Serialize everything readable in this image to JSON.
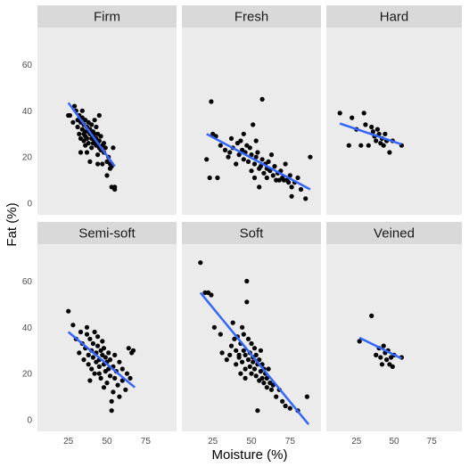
{
  "chart_data": {
    "type": "scatter",
    "xlabel": "Moisture (%)",
    "ylabel": "Fat (%)",
    "xlim": [
      5,
      95
    ],
    "ylim": [
      -5,
      76
    ],
    "x_ticks": [
      25,
      50,
      75
    ],
    "x_tick_labels": [
      "25",
      "50",
      "75"
    ],
    "y_ticks": [
      0,
      20,
      40,
      60
    ],
    "y_tick_labels": [
      "0",
      "20",
      "40",
      "60"
    ],
    "grid": false,
    "colors": {
      "panel": "#ebebeb",
      "strip": "#d9d9d9",
      "point": "#000000",
      "fit_line": "#3366ff"
    },
    "facets": [
      {
        "label": "Firm",
        "fit": {
          "x": [
            25,
            55
          ],
          "y": [
            43.5,
            16
          ]
        },
        "points": [
          [
            25,
            38
          ],
          [
            26,
            38
          ],
          [
            28,
            35
          ],
          [
            29,
            42
          ],
          [
            30,
            40
          ],
          [
            31,
            36
          ],
          [
            31,
            33
          ],
          [
            32,
            30
          ],
          [
            32,
            38
          ],
          [
            33,
            28
          ],
          [
            33,
            35
          ],
          [
            34,
            32
          ],
          [
            34,
            37
          ],
          [
            35,
            30
          ],
          [
            35,
            27
          ],
          [
            35,
            34
          ],
          [
            36,
            31
          ],
          [
            36,
            29
          ],
          [
            36,
            36
          ],
          [
            37,
            33
          ],
          [
            37,
            28
          ],
          [
            37,
            22
          ],
          [
            38,
            31
          ],
          [
            38,
            26
          ],
          [
            38,
            35
          ],
          [
            39,
            30
          ],
          [
            39,
            32
          ],
          [
            40,
            28
          ],
          [
            40,
            24
          ],
          [
            40,
            34
          ],
          [
            41,
            29
          ],
          [
            41,
            31
          ],
          [
            41,
            26
          ],
          [
            42,
            27
          ],
          [
            42,
            30
          ],
          [
            42,
            36
          ],
          [
            43,
            25
          ],
          [
            43,
            28
          ],
          [
            43,
            33
          ],
          [
            44,
            26
          ],
          [
            44,
            30
          ],
          [
            44,
            21
          ],
          [
            45,
            27
          ],
          [
            45,
            24
          ],
          [
            45,
            38
          ],
          [
            46,
            23
          ],
          [
            46,
            29
          ],
          [
            47,
            25
          ],
          [
            47,
            17
          ],
          [
            48,
            22
          ],
          [
            48,
            26
          ],
          [
            49,
            24
          ],
          [
            50,
            18
          ],
          [
            50,
            12
          ],
          [
            51,
            20
          ],
          [
            52,
            17
          ],
          [
            52,
            15
          ],
          [
            53,
            16
          ],
          [
            53,
            7
          ],
          [
            54,
            24
          ],
          [
            55,
            7
          ],
          [
            55,
            6
          ],
          [
            34,
            40
          ],
          [
            36,
            25
          ],
          [
            39,
            18
          ],
          [
            44,
            17
          ],
          [
            33,
            22
          ]
        ]
      },
      {
        "label": "Fresh",
        "fit": {
          "x": [
            21,
            88
          ],
          "y": [
            30,
            6
          ]
        },
        "points": [
          [
            21,
            19
          ],
          [
            23,
            11
          ],
          [
            24,
            44
          ],
          [
            25,
            30
          ],
          [
            27,
            29
          ],
          [
            28,
            11
          ],
          [
            30,
            25
          ],
          [
            33,
            23
          ],
          [
            35,
            20
          ],
          [
            36,
            22
          ],
          [
            37,
            28
          ],
          [
            38,
            24
          ],
          [
            40,
            17
          ],
          [
            41,
            26
          ],
          [
            42,
            21
          ],
          [
            43,
            27
          ],
          [
            44,
            23
          ],
          [
            45,
            30
          ],
          [
            45,
            19
          ],
          [
            46,
            22
          ],
          [
            47,
            25
          ],
          [
            48,
            18
          ],
          [
            49,
            24
          ],
          [
            50,
            21
          ],
          [
            50,
            14
          ],
          [
            51,
            34
          ],
          [
            52,
            17
          ],
          [
            53,
            20
          ],
          [
            53,
            27
          ],
          [
            54,
            22
          ],
          [
            55,
            15
          ],
          [
            56,
            16
          ],
          [
            57,
            19
          ],
          [
            57,
            45
          ],
          [
            58,
            13
          ],
          [
            59,
            17
          ],
          [
            60,
            11
          ],
          [
            60,
            15
          ],
          [
            61,
            18
          ],
          [
            62,
            14
          ],
          [
            63,
            21
          ],
          [
            64,
            12
          ],
          [
            65,
            16
          ],
          [
            66,
            10
          ],
          [
            67,
            13
          ],
          [
            68,
            10
          ],
          [
            69,
            14
          ],
          [
            70,
            11
          ],
          [
            71,
            10
          ],
          [
            72,
            17
          ],
          [
            73,
            10
          ],
          [
            74,
            9
          ],
          [
            75,
            12
          ],
          [
            76,
            3
          ],
          [
            76,
            7
          ],
          [
            78,
            9
          ],
          [
            80,
            11
          ],
          [
            82,
            6
          ],
          [
            85,
            2
          ],
          [
            88,
            20
          ],
          [
            55,
            7
          ],
          [
            52,
            11
          ]
        ]
      },
      {
        "label": "Hard",
        "fit": {
          "x": [
            14,
            55
          ],
          "y": [
            34.5,
            25.5
          ]
        },
        "points": [
          [
            14,
            39
          ],
          [
            20,
            25
          ],
          [
            22,
            37
          ],
          [
            25,
            32
          ],
          [
            28,
            25
          ],
          [
            30,
            39
          ],
          [
            31,
            34
          ],
          [
            33,
            25
          ],
          [
            35,
            33
          ],
          [
            36,
            31
          ],
          [
            37,
            29
          ],
          [
            38,
            27
          ],
          [
            39,
            32
          ],
          [
            40,
            30
          ],
          [
            41,
            26
          ],
          [
            42,
            28
          ],
          [
            43,
            25
          ],
          [
            44,
            30
          ],
          [
            45,
            27
          ],
          [
            47,
            22
          ],
          [
            49,
            27
          ],
          [
            55,
            25
          ]
        ]
      },
      {
        "label": "Semi-soft",
        "fit": {
          "x": [
            25,
            68
          ],
          "y": [
            38,
            14
          ]
        },
        "points": [
          [
            25,
            47
          ],
          [
            28,
            41
          ],
          [
            30,
            35
          ],
          [
            32,
            29
          ],
          [
            33,
            38
          ],
          [
            34,
            33
          ],
          [
            35,
            26
          ],
          [
            36,
            31
          ],
          [
            37,
            37
          ],
          [
            37,
            40
          ],
          [
            38,
            28
          ],
          [
            38,
            24
          ],
          [
            39,
            35
          ],
          [
            40,
            30
          ],
          [
            40,
            22
          ],
          [
            41,
            33
          ],
          [
            41,
            27
          ],
          [
            42,
            38
          ],
          [
            42,
            20
          ],
          [
            43,
            29
          ],
          [
            43,
            25
          ],
          [
            44,
            32
          ],
          [
            44,
            36
          ],
          [
            45,
            26
          ],
          [
            45,
            23
          ],
          [
            46,
            30
          ],
          [
            46,
            18
          ],
          [
            47,
            28
          ],
          [
            47,
            34
          ],
          [
            48,
            24
          ],
          [
            48,
            31
          ],
          [
            49,
            21
          ],
          [
            49,
            27
          ],
          [
            50,
            25
          ],
          [
            50,
            16
          ],
          [
            51,
            29
          ],
          [
            51,
            22
          ],
          [
            52,
            19
          ],
          [
            52,
            26
          ],
          [
            53,
            4
          ],
          [
            53,
            8
          ],
          [
            54,
            12
          ],
          [
            54,
            23
          ],
          [
            55,
            18
          ],
          [
            55,
            28
          ],
          [
            56,
            21
          ],
          [
            57,
            15
          ],
          [
            58,
            25
          ],
          [
            58,
            10
          ],
          [
            60,
            17
          ],
          [
            60,
            22
          ],
          [
            62,
            13
          ],
          [
            63,
            20
          ],
          [
            64,
            31
          ],
          [
            65,
            18
          ],
          [
            66,
            29
          ],
          [
            67,
            30
          ],
          [
            45,
            20
          ],
          [
            39,
            17
          ],
          [
            48,
            14
          ]
        ]
      },
      {
        "label": "Soft",
        "fit": {
          "x": [
            17,
            87
          ],
          "y": [
            55,
            -2
          ]
        },
        "points": [
          [
            17,
            68
          ],
          [
            20,
            55
          ],
          [
            22,
            55
          ],
          [
            24,
            54
          ],
          [
            26,
            40
          ],
          [
            30,
            37
          ],
          [
            31,
            29
          ],
          [
            34,
            26
          ],
          [
            36,
            28
          ],
          [
            37,
            32
          ],
          [
            38,
            42
          ],
          [
            39,
            35
          ],
          [
            40,
            30
          ],
          [
            40,
            24
          ],
          [
            41,
            36
          ],
          [
            42,
            27
          ],
          [
            43,
            33
          ],
          [
            43,
            20
          ],
          [
            44,
            25
          ],
          [
            45,
            30
          ],
          [
            45,
            37
          ],
          [
            46,
            22
          ],
          [
            46,
            28
          ],
          [
            47,
            51
          ],
          [
            47,
            60
          ],
          [
            48,
            26
          ],
          [
            48,
            35
          ],
          [
            49,
            23
          ],
          [
            49,
            29
          ],
          [
            50,
            20
          ],
          [
            50,
            33
          ],
          [
            51,
            25
          ],
          [
            51,
            27
          ],
          [
            52,
            22
          ],
          [
            52,
            31
          ],
          [
            53,
            19
          ],
          [
            53,
            28
          ],
          [
            54,
            4
          ],
          [
            54,
            24
          ],
          [
            55,
            17
          ],
          [
            55,
            26
          ],
          [
            56,
            21
          ],
          [
            56,
            30
          ],
          [
            57,
            18
          ],
          [
            57,
            24
          ],
          [
            58,
            16
          ],
          [
            58,
            22
          ],
          [
            59,
            20
          ],
          [
            60,
            14
          ],
          [
            60,
            18
          ],
          [
            61,
            22
          ],
          [
            62,
            16
          ],
          [
            63,
            13
          ],
          [
            64,
            15
          ],
          [
            66,
            10
          ],
          [
            68,
            13
          ],
          [
            70,
            8
          ],
          [
            72,
            6
          ],
          [
            75,
            5
          ],
          [
            80,
            4
          ],
          [
            86,
            10
          ],
          [
            44,
            40
          ],
          [
            42,
            28
          ],
          [
            46,
            18
          ]
        ]
      },
      {
        "label": "Veined",
        "fit": {
          "x": [
            27,
            55
          ],
          "y": [
            35.5,
            26.5
          ]
        },
        "points": [
          [
            27,
            34
          ],
          [
            35,
            45
          ],
          [
            38,
            28
          ],
          [
            40,
            31
          ],
          [
            41,
            27
          ],
          [
            42,
            24
          ],
          [
            43,
            32
          ],
          [
            44,
            29
          ],
          [
            45,
            26
          ],
          [
            46,
            30
          ],
          [
            47,
            24
          ],
          [
            48,
            27
          ],
          [
            49,
            23
          ],
          [
            50,
            28
          ],
          [
            55,
            27
          ]
        ]
      }
    ]
  }
}
